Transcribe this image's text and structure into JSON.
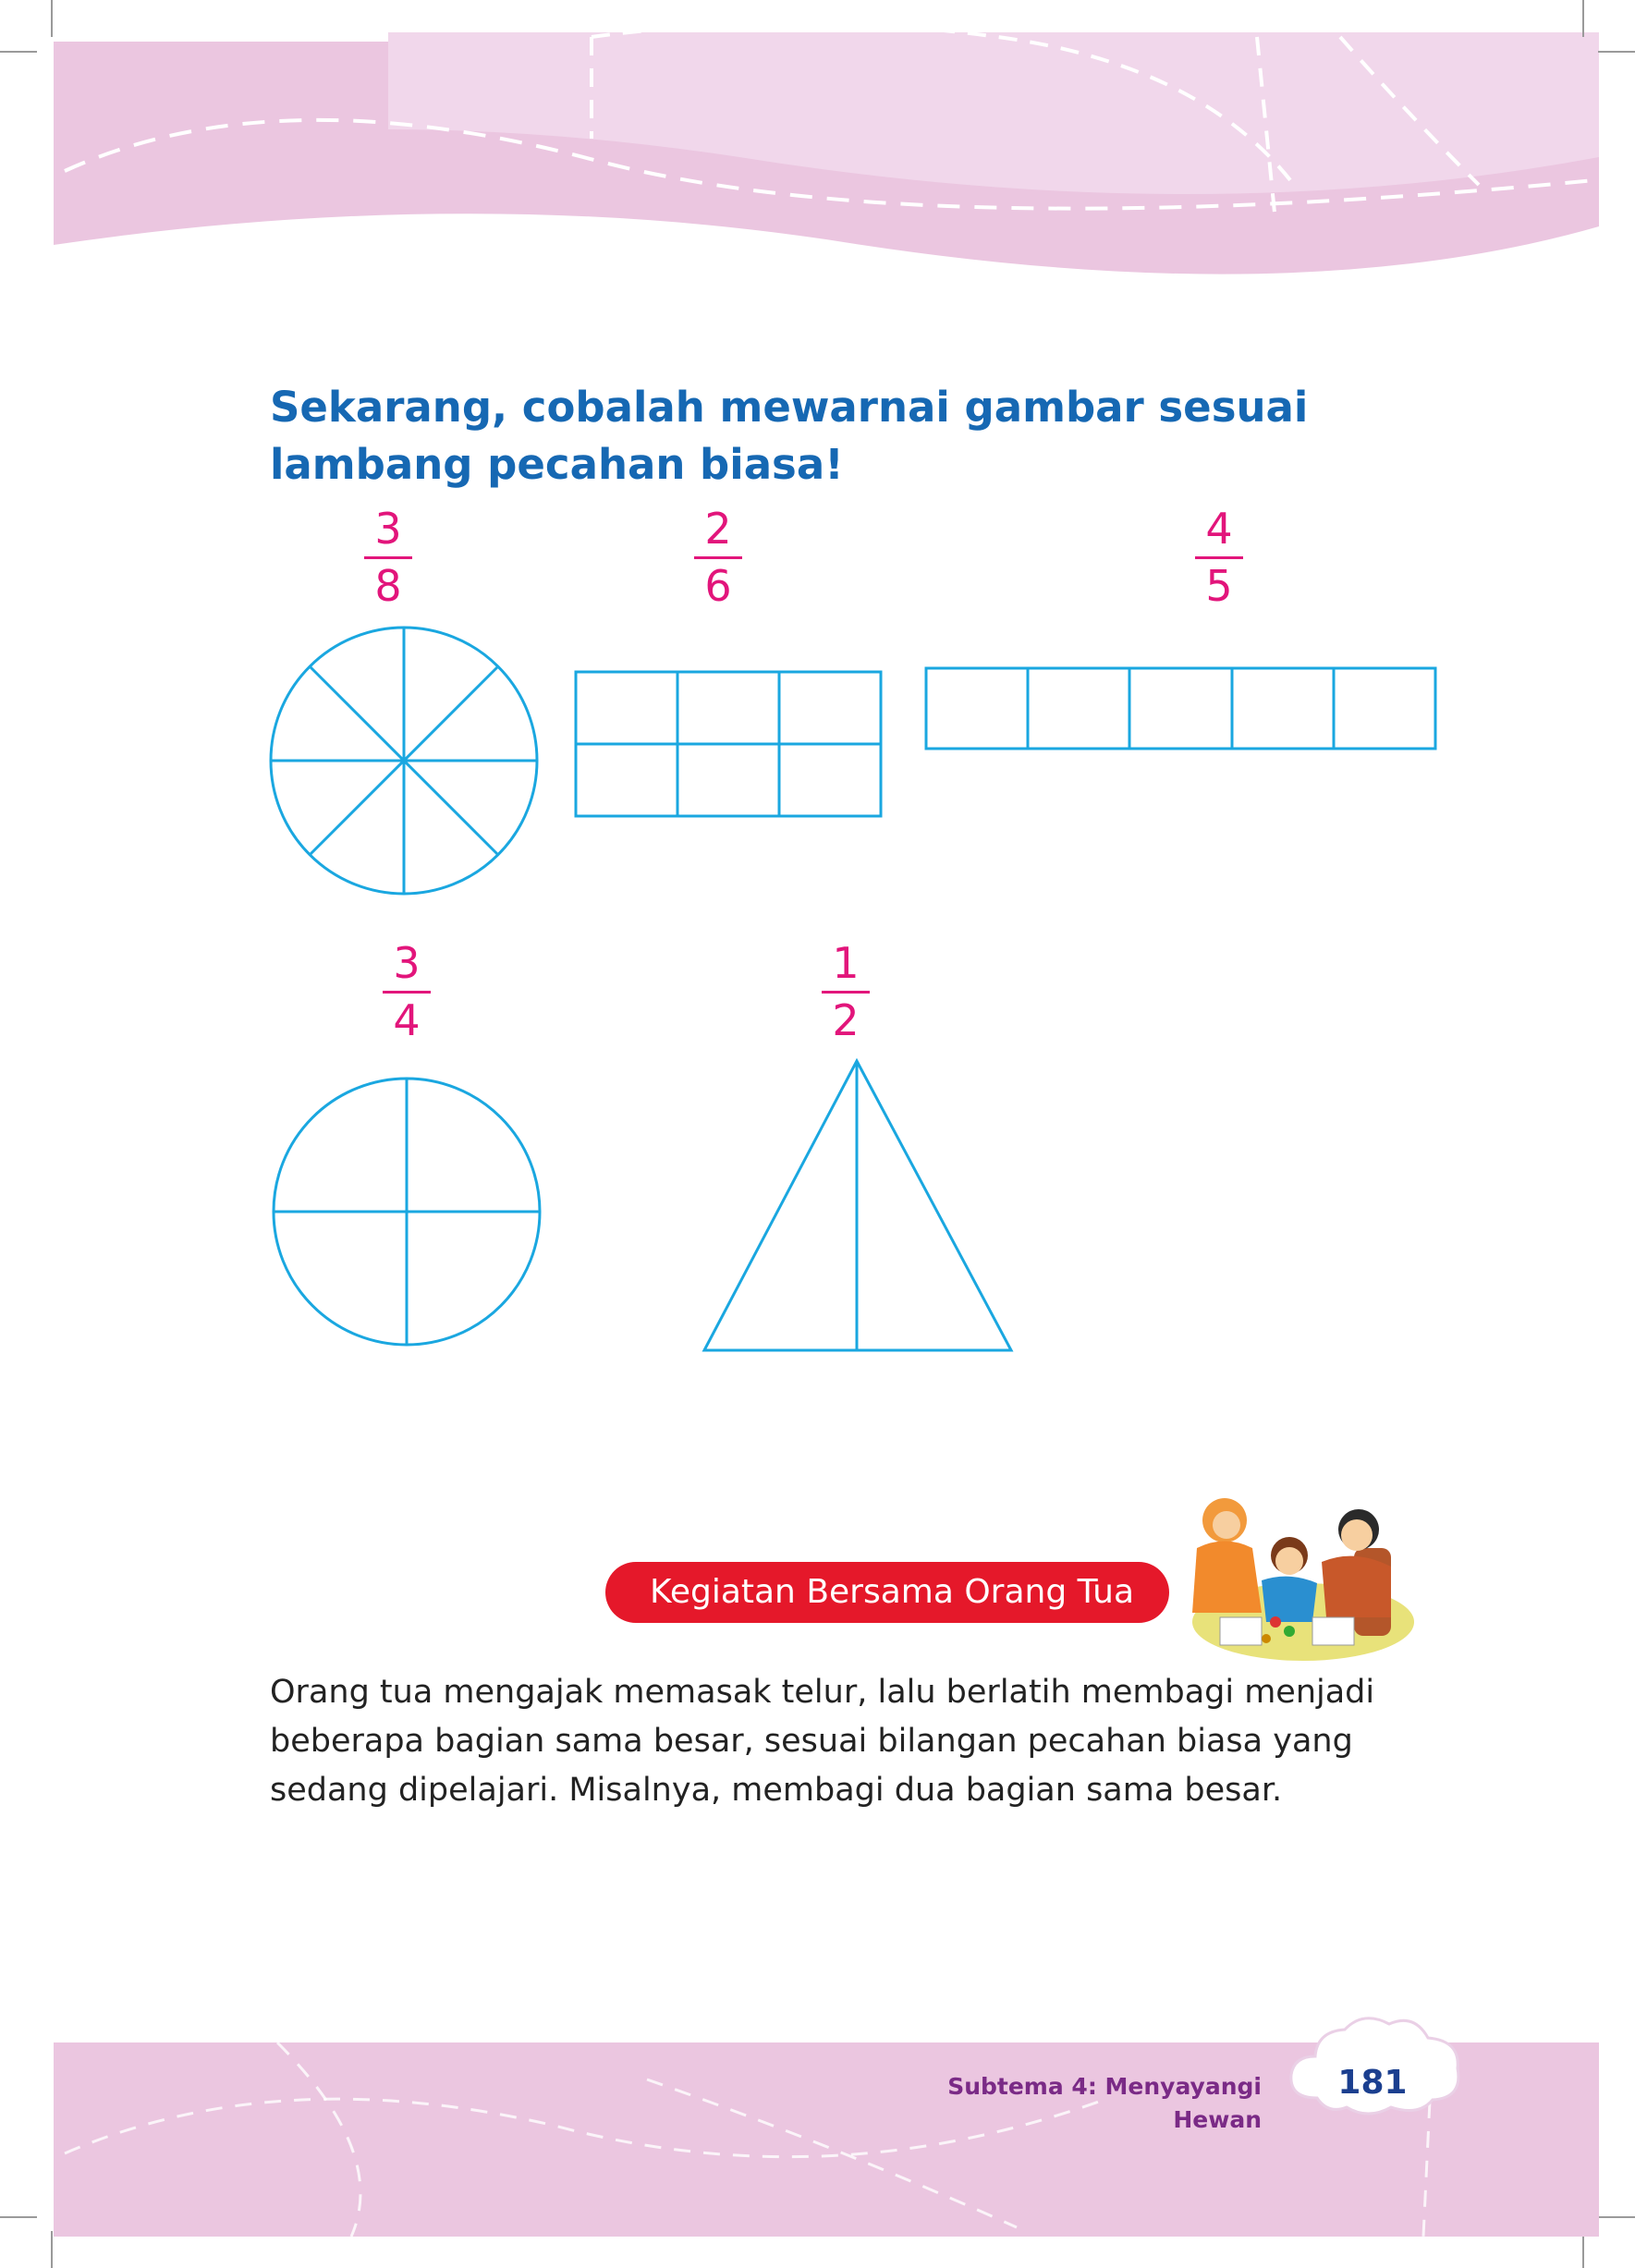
{
  "instruction": {
    "line1": "Sekarang, cobalah mewarnai gambar sesuai",
    "line2": "lambang pecahan biasa!"
  },
  "fractions": [
    {
      "numerator": "3",
      "denominator": "8"
    },
    {
      "numerator": "2",
      "denominator": "6"
    },
    {
      "numerator": "4",
      "denominator": "5"
    },
    {
      "numerator": "3",
      "denominator": "4"
    },
    {
      "numerator": "1",
      "denominator": "2"
    }
  ],
  "activity": {
    "label": "Kegiatan Bersama Orang Tua",
    "text_lines": [
      "Orang tua mengajak memasak telur, lalu berlatih membagi menjadi",
      "beberapa bagian sama besar, sesuai bilangan pecahan biasa yang",
      "sedang dipelajari. Misalnya, membagi dua bagian sama besar."
    ]
  },
  "footer": {
    "subtheme": "Subtema 4: Menyayangi Hewan",
    "page_number": "181"
  },
  "colors": {
    "heading": "#1668b3",
    "fraction": "#e2157b",
    "shape_stroke": "#1aa7e0",
    "band": "#ebc6e0",
    "pill": "#e5182a"
  }
}
